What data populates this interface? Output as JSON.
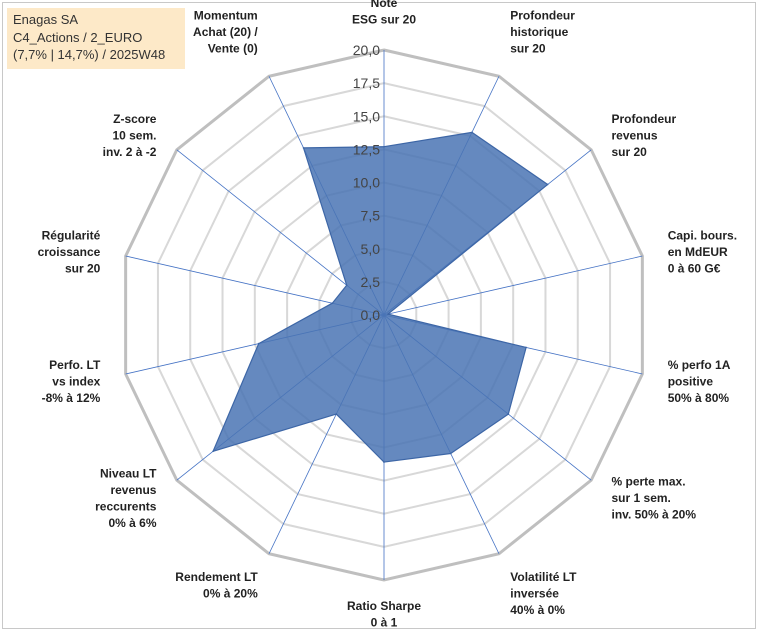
{
  "legend": {
    "line1": "Enagas SA",
    "line2": "C4_Actions / 2_EURO",
    "line3": "(7,7% | 14,7%) / 2025W48"
  },
  "colors": {
    "fill": "#4a74b4",
    "stroke": "#3d66a6",
    "grid": "#d8d8d8",
    "outer": "#bfbfbf",
    "spoke": "#4472c4",
    "legend_bg": "#fde9c8"
  },
  "chart_data": {
    "type": "radar",
    "title": "Enagas SA",
    "rmin": 0,
    "rmax": 20,
    "ticks": [
      "0,0",
      "2,5",
      "5,0",
      "7,5",
      "10,0",
      "12,5",
      "15,0",
      "17,5",
      "20,0"
    ],
    "categories": [
      [
        "Note",
        "ESG sur 20"
      ],
      [
        "Profondeur",
        "historique",
        "sur 20"
      ],
      [
        "Profondeur",
        "revenus",
        "sur 20"
      ],
      [
        "Capi. bours.",
        "en MdEUR",
        "0 à 60 G€"
      ],
      [
        "% perfo 1A",
        "positive",
        "50% à 80%"
      ],
      [
        "% perte max.",
        "sur 1 sem.",
        "inv. 50% à 20%"
      ],
      [
        "Volatilité LT",
        "inversée",
        "40% à 0%"
      ],
      [
        "Ratio Sharpe",
        "0 à 1"
      ],
      [
        "Rendement LT",
        "0% à 20%"
      ],
      [
        "Niveau LT",
        "revenus",
        "reccurents",
        "0% à 6%"
      ],
      [
        "Perfo. LT",
        "vs index",
        "-8% à 12%"
      ],
      [
        "Régularité",
        "croissance",
        "sur 20"
      ],
      [
        "Z-score",
        "10 sem.",
        "inv. 2 à -2"
      ],
      [
        "Momentum",
        "Achat (20) /",
        "Vente (0)"
      ]
    ],
    "series": [
      {
        "name": "Enagas SA",
        "values": [
          12.7,
          15.3,
          15.8,
          0.3,
          11.0,
          12.0,
          11.6,
          11.1,
          8.3,
          16.5,
          9.7,
          4.0,
          3.6,
          14.0
        ]
      }
    ]
  }
}
